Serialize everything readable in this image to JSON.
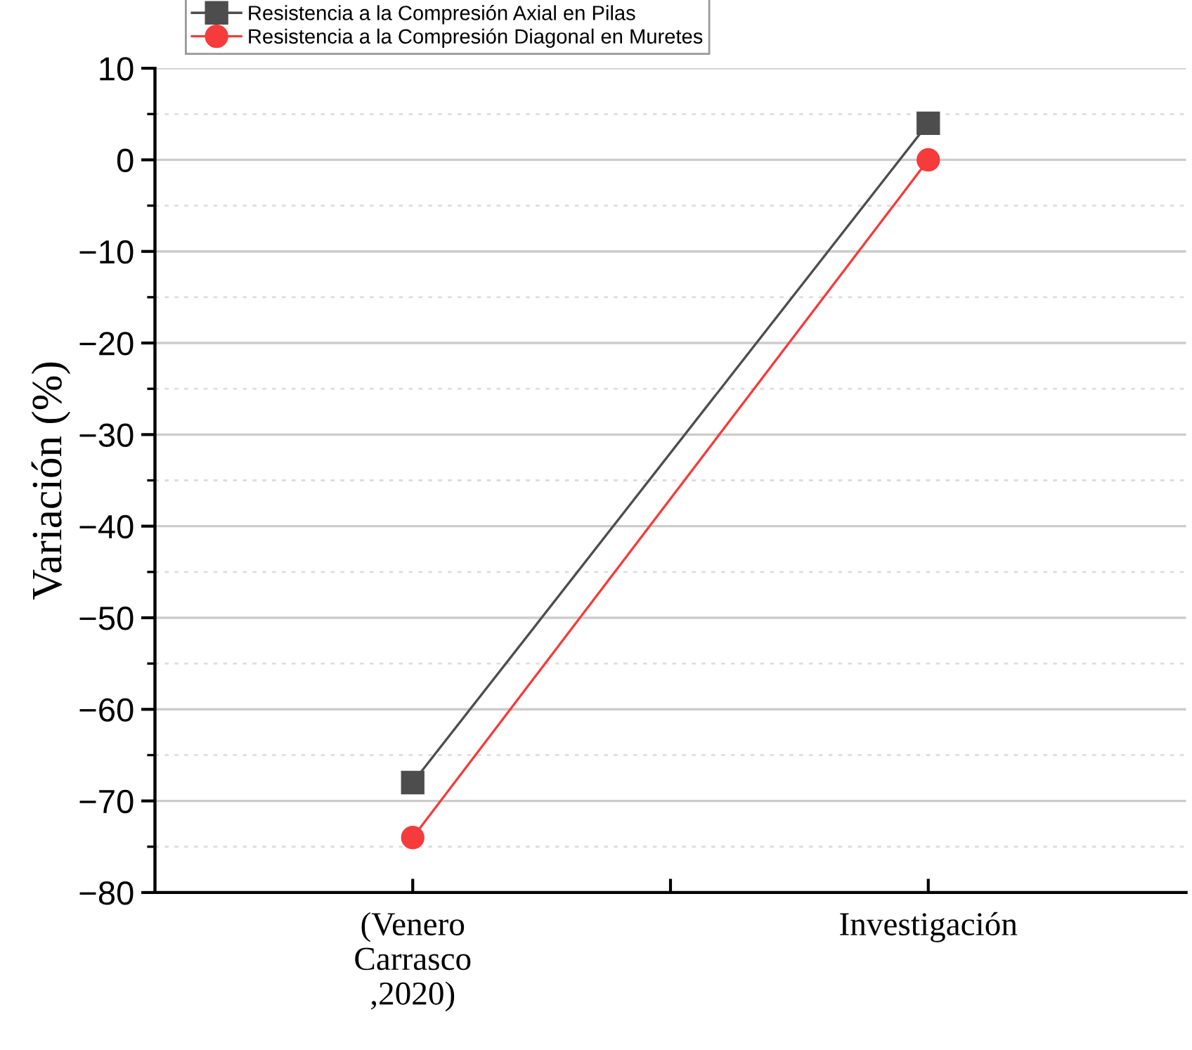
{
  "chart_data": {
    "type": "line",
    "ylabel": "Variación (%)",
    "categories": [
      "(Venero\nCarrasco\n,2020)",
      "Investigación"
    ],
    "series": [
      {
        "name": "Resistencia a la Compresión Axial en Pilas",
        "color": "#4d4d4d",
        "marker": "square",
        "values": [
          -68,
          4
        ]
      },
      {
        "name": "Resistencia a la Compresión Diagonal en Muretes",
        "color": "#f53b3b",
        "marker": "circle",
        "values": [
          -74,
          0
        ]
      }
    ],
    "ylim": [
      -80,
      10
    ],
    "yticks": [
      -80,
      -70,
      -60,
      -50,
      -40,
      -30,
      -20,
      -10,
      0,
      10
    ],
    "grid": "y",
    "legend": "top left",
    "line_style": "solid"
  }
}
